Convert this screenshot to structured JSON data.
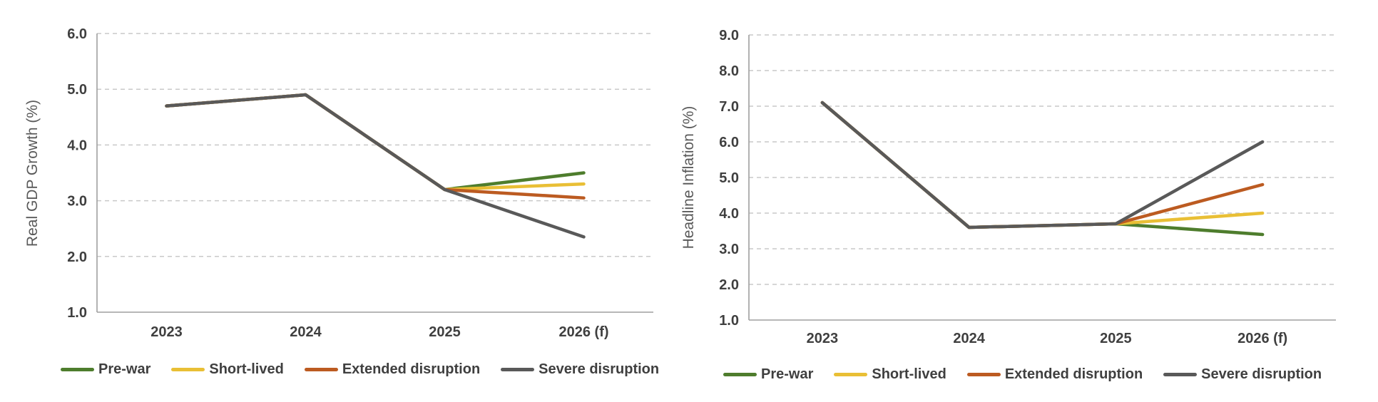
{
  "page": {
    "background": "#ffffff"
  },
  "colors": {
    "gridline": "#c9c9c9",
    "axis_line": "#9f9f9f",
    "tick_text": "#3f3f3f",
    "axis_title_text": "#595959",
    "legend_text": "#3f3f3f"
  },
  "chart_data": [
    {
      "type": "line",
      "title": "",
      "ylabel": "Real GDP Growth (%)",
      "xlabel": "",
      "categories": [
        "2023",
        "2024",
        "2025",
        "2026 (f)"
      ],
      "ylim": [
        1.0,
        6.0
      ],
      "yticks": [
        "6.0",
        "5.0",
        "4.0",
        "3.0",
        "2.0",
        "1.0"
      ],
      "grid": "horizontal-dashed",
      "legend_position": "bottom",
      "series": [
        {
          "name": "Pre-war",
          "color": "#4e7d2d",
          "values": [
            4.7,
            4.9,
            3.2,
            3.5
          ]
        },
        {
          "name": "Short-lived",
          "color": "#e9bf35",
          "values": [
            4.7,
            4.9,
            3.2,
            3.3
          ]
        },
        {
          "name": "Extended disruption",
          "color": "#bc5b21",
          "values": [
            4.7,
            4.9,
            3.2,
            3.05
          ]
        },
        {
          "name": "Severe disruption",
          "color": "#595959",
          "values": [
            4.7,
            4.9,
            3.2,
            2.35
          ]
        }
      ]
    },
    {
      "type": "line",
      "title": "",
      "ylabel": "Headline Inflation (%)",
      "xlabel": "",
      "categories": [
        "2023",
        "2024",
        "2025",
        "2026 (f)"
      ],
      "ylim": [
        1.0,
        9.0
      ],
      "yticks": [
        "9.0",
        "8.0",
        "7.0",
        "6.0",
        "5.0",
        "4.0",
        "3.0",
        "2.0",
        "1.0"
      ],
      "grid": "horizontal-dashed",
      "legend_position": "bottom",
      "series": [
        {
          "name": "Pre-war",
          "color": "#4e7d2d",
          "values": [
            7.1,
            3.6,
            3.7,
            3.4
          ]
        },
        {
          "name": "Short-lived",
          "color": "#e9bf35",
          "values": [
            7.1,
            3.6,
            3.7,
            4.0
          ]
        },
        {
          "name": "Extended disruption",
          "color": "#bc5b21",
          "values": [
            7.1,
            3.6,
            3.7,
            4.8
          ]
        },
        {
          "name": "Severe disruption",
          "color": "#595959",
          "values": [
            7.1,
            3.6,
            3.7,
            6.0
          ]
        }
      ]
    }
  ]
}
